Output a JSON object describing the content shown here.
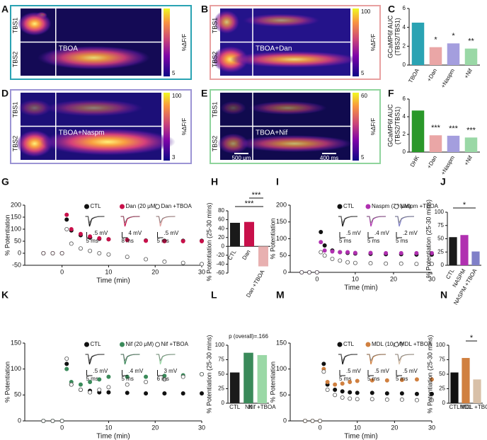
{
  "panel_labels": [
    "A",
    "B",
    "C",
    "D",
    "E",
    "F",
    "G",
    "H",
    "I",
    "J",
    "K",
    "L",
    "M",
    "N"
  ],
  "imaging": [
    {
      "rows": [
        "TBS1",
        "TBS2"
      ],
      "condition": "TBOA",
      "cbar_label": "%ΔF/F",
      "cbar_ticks": [
        5
      ],
      "border": "#2aa3b3"
    },
    {
      "rows": [
        "TBS1",
        "TBS2"
      ],
      "condition": "TBOA+Dan",
      "cbar_label": "%ΔF/F",
      "cbar_ticks": [
        5,
        100
      ],
      "border": "#e8a0a0"
    },
    {
      "rows": [
        "TBS1",
        "TBS2"
      ],
      "condition": "TBOA+Naspm",
      "cbar_label": "%ΔF/F",
      "cbar_ticks": [
        3,
        100
      ],
      "border": "#9c94d4"
    },
    {
      "rows": [
        "TBS1",
        "TBS2"
      ],
      "condition": "TBOA+Nif",
      "cbar_label": "%ΔF/F",
      "cbar_ticks": [
        5,
        60
      ],
      "border": "#8fd49c",
      "scalebars": [
        "500 μm",
        "400 ms"
      ]
    }
  ],
  "chart_data": [
    {
      "type": "bar",
      "ylabel": [
        "GCaMP6f AUC",
        "(TBS2/TBS1)"
      ],
      "categories": [
        "TBOA",
        "+Dan",
        "+Naspm",
        "+Nif"
      ],
      "values": [
        4.5,
        1.9,
        2.3,
        1.75
      ],
      "colors": [
        "#2aa3b3",
        "#eaa6a6",
        "#a49ede",
        "#9ad8a6"
      ],
      "ylim": [
        0,
        6
      ],
      "yticks": [
        0,
        2,
        4,
        6
      ],
      "significance": [
        "*",
        "*",
        "**"
      ],
      "label_rotation": -60
    },
    {
      "type": "bar",
      "ylabel": [
        "GCaMP6f AUC",
        "(TBS2/TBS1)"
      ],
      "categories": [
        "DHK",
        "+Dan",
        "+Naspm",
        "+Nif"
      ],
      "values": [
        4.7,
        1.9,
        1.85,
        1.65
      ],
      "colors": [
        "#2a982a",
        "#eaa6a6",
        "#a49ede",
        "#9ad8a6"
      ],
      "ylim": [
        0,
        6
      ],
      "yticks": [
        0,
        2,
        4,
        6
      ],
      "significance": [
        "***",
        "***",
        "***"
      ],
      "label_rotation": -60
    },
    {
      "type": "line",
      "ylabel": [
        "% Potentiation"
      ],
      "xlabel": "Time (min)",
      "x": [
        -4,
        -2,
        0,
        1,
        2,
        4,
        6,
        8,
        10,
        14,
        18,
        22,
        26,
        30
      ],
      "xlim": [
        -8,
        30
      ],
      "xticks": [
        0,
        10,
        20,
        30
      ],
      "ylim": [
        -50,
        200
      ],
      "yticks": [
        -50,
        0,
        50,
        100,
        150,
        200
      ],
      "series": [
        {
          "name": "CTL",
          "color": "#111111",
          "marker": "filled",
          "values": [
            0,
            0,
            0,
            140,
            95,
            75,
            65,
            60,
            58,
            55,
            53,
            52,
            52,
            52
          ],
          "scale": [
            ".5 mV",
            "5 ms"
          ]
        },
        {
          "name": "Dan (20 μM)",
          "color": "#c8104a",
          "marker": "filled",
          "values": [
            0,
            0,
            0,
            160,
            100,
            80,
            70,
            62,
            58,
            55,
            52,
            50,
            50,
            50
          ],
          "scale": [
            "4 mV",
            "8 ms"
          ]
        },
        {
          "name": "Dan +TBOA",
          "color": "#e0a0a0",
          "marker": "open",
          "values": [
            0,
            0,
            0,
            100,
            40,
            20,
            10,
            0,
            -5,
            -15,
            -25,
            -35,
            -40,
            -45
          ],
          "scale": [
            ".5 mV",
            "5 ms"
          ]
        }
      ]
    },
    {
      "type": "bar",
      "ylabel": [
        "% Potentiation (25-30 mins)"
      ],
      "categories": [
        "CTL",
        "Dan",
        "Dan +TBOA"
      ],
      "values": [
        53,
        55,
        -45
      ],
      "colors": [
        "#1a1a1a",
        "#c8104a",
        "#e8b0b0"
      ],
      "ylim": [
        -60,
        80
      ],
      "yticks": [
        -60,
        -40,
        -20,
        0,
        20,
        40,
        60,
        80
      ],
      "significance": [
        "***",
        "***"
      ],
      "label_rotation": -60
    },
    {
      "type": "line",
      "ylabel": [
        "% Potentiation"
      ],
      "xlabel": "Time (min)",
      "x": [
        -4,
        -2,
        0,
        1,
        2,
        4,
        6,
        8,
        10,
        14,
        18,
        22,
        26,
        30
      ],
      "xlim": [
        -7,
        30
      ],
      "xticks": [
        0,
        10,
        20,
        30
      ],
      "ylim": [
        0,
        200
      ],
      "yticks": [
        0,
        50,
        100,
        150,
        200
      ],
      "series": [
        {
          "name": "CTL",
          "color": "#111111",
          "marker": "filled",
          "values": [
            0,
            0,
            0,
            120,
            80,
            65,
            60,
            58,
            56,
            55,
            54,
            54,
            53,
            53
          ],
          "scale": [
            ".5 mV",
            "5 ms"
          ]
        },
        {
          "name": "Naspm (30 μM)",
          "color": "#b030b0",
          "marker": "filled",
          "values": [
            0,
            0,
            0,
            90,
            65,
            62,
            60,
            60,
            58,
            58,
            57,
            57,
            57,
            57
          ],
          "scale": [
            ".4 mV",
            "5 ms"
          ]
        },
        {
          "name": "Naspm +TBOA",
          "color": "#8080c8",
          "marker": "open",
          "values": [
            0,
            0,
            0,
            60,
            50,
            40,
            35,
            30,
            28,
            27,
            26,
            26,
            25,
            25
          ],
          "scale": [
            ".2 mV",
            "5 ms"
          ]
        }
      ]
    },
    {
      "type": "bar",
      "ylabel": [
        "% Potentiation (25-30 mins)"
      ],
      "categories": [
        "CTL",
        "NASPM",
        "NASPM +TBOA"
      ],
      "values": [
        53,
        57,
        26
      ],
      "colors": [
        "#1a1a1a",
        "#b030b0",
        "#8080c8"
      ],
      "ylim": [
        0,
        100
      ],
      "yticks": [
        0,
        25,
        50,
        75,
        100
      ],
      "significance": [
        "*"
      ],
      "label_rotation": -60
    },
    {
      "type": "line",
      "ylabel": [
        "% Potentiation"
      ],
      "xlabel": "Time (min)",
      "x": [
        -4,
        -2,
        0,
        1,
        2,
        4,
        6,
        8,
        10,
        14,
        18,
        22,
        26,
        30
      ],
      "xlim": [
        -8,
        30
      ],
      "xticks": [
        0,
        10,
        20,
        30
      ],
      "ylim": [
        0,
        150
      ],
      "yticks": [
        0,
        50,
        100,
        150
      ],
      "series": [
        {
          "name": "CTL",
          "color": "#111111",
          "marker": "filled",
          "values": [
            0,
            0,
            0,
            110,
            70,
            60,
            58,
            55,
            55,
            54,
            53,
            53,
            53,
            53
          ],
          "scale": [
            ".5 mV",
            "5 ms"
          ]
        },
        {
          "name": "Nif (20 μM)",
          "color": "#3a8a5a",
          "marker": "filled",
          "values": [
            0,
            0,
            0,
            100,
            75,
            70,
            75,
            80,
            85,
            85,
            85,
            87,
            88,
            90
          ],
          "scale": [
            ".4 mV",
            "5 ms"
          ]
        },
        {
          "name": "Nif +TBOA",
          "color": "#9ad8a6",
          "marker": "open",
          "values": [
            0,
            0,
            0,
            120,
            70,
            60,
            55,
            60,
            65,
            70,
            75,
            80,
            85,
            90
          ],
          "scale": [
            "3 mV",
            "6 ms"
          ]
        }
      ]
    },
    {
      "type": "bar",
      "ylabel": [
        "% Potentiation (25-30 mins)"
      ],
      "categories": [
        "CTL",
        "Nif",
        "Nif +TBOA"
      ],
      "values": [
        53,
        87,
        83
      ],
      "colors": [
        "#1a1a1a",
        "#3a8a5a",
        "#9ad8a6"
      ],
      "ylim": [
        0,
        100
      ],
      "yticks": [
        0,
        25,
        50,
        75,
        100
      ],
      "annotation": "p (overall)=.166",
      "label_rotation": 0
    },
    {
      "type": "line",
      "ylabel": [
        "% Potentiation"
      ],
      "xlabel": "Time (min)",
      "x": [
        -4,
        -2,
        0,
        1,
        2,
        4,
        6,
        8,
        10,
        14,
        18,
        22,
        26,
        30
      ],
      "xlim": [
        -8,
        30
      ],
      "xticks": [
        0,
        10,
        20,
        30
      ],
      "ylim": [
        0,
        150
      ],
      "yticks": [
        0,
        50,
        100,
        150
      ],
      "series": [
        {
          "name": "CTL",
          "color": "#111111",
          "marker": "filled",
          "values": [
            0,
            0,
            0,
            110,
            70,
            60,
            57,
            55,
            54,
            54,
            53,
            53,
            52,
            52
          ],
          "scale": [
            ".5 mV",
            "5 ms"
          ]
        },
        {
          "name": "MDL (10μM)",
          "color": "#d08040",
          "marker": "filled",
          "values": [
            0,
            0,
            0,
            100,
            75,
            70,
            72,
            75,
            77,
            78,
            78,
            79,
            80,
            80
          ],
          "scale": [
            ".5 mV",
            "5 ms"
          ]
        },
        {
          "name": "MDL +TBOA",
          "color": "#d8c0a8",
          "marker": "open",
          "values": [
            0,
            0,
            0,
            95,
            60,
            50,
            45,
            43,
            42,
            42,
            41,
            41,
            40,
            40
          ],
          "scale": [
            ".5 mV",
            "5 ms"
          ]
        }
      ]
    },
    {
      "type": "bar",
      "ylabel": [
        "% Potentiation (25-30 mins)"
      ],
      "categories": [
        "CTL",
        "MDL",
        "MDL +TBOA"
      ],
      "values": [
        53,
        78,
        41
      ],
      "colors": [
        "#111111",
        "#d08040",
        "#d8c0a8"
      ],
      "ylim": [
        0,
        100
      ],
      "yticks": [
        0,
        25,
        50,
        75,
        100
      ],
      "significance": [
        "*"
      ],
      "label_rotation": 0
    }
  ]
}
